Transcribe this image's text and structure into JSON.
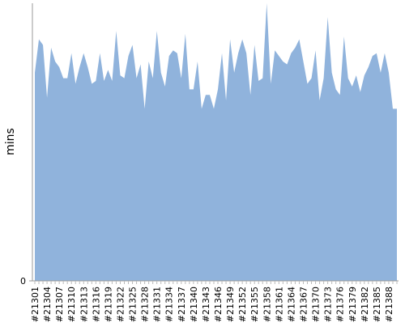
{
  "chart_data": {
    "type": "area",
    "y_label": "mins",
    "categories": [
      "#21301",
      null,
      null,
      "#21304",
      null,
      null,
      "#21307",
      null,
      null,
      "#21310",
      null,
      null,
      "#21313",
      null,
      null,
      "#21316",
      null,
      null,
      "#21319",
      null,
      null,
      "#21322",
      null,
      null,
      "#21325",
      null,
      null,
      "#21328",
      null,
      null,
      "#21331",
      null,
      null,
      "#21334",
      null,
      null,
      "#21337",
      null,
      null,
      "#21340",
      null,
      null,
      "#21343",
      null,
      null,
      "#21346",
      null,
      null,
      "#21349",
      null,
      null,
      "#21352",
      null,
      null,
      "#21355",
      null,
      null,
      "#21358",
      null,
      null,
      "#21361",
      null,
      null,
      "#21364",
      null,
      null,
      "#21367",
      null,
      null,
      "#21370",
      null,
      null,
      "#21373",
      null,
      null,
      "#21376",
      null,
      null,
      "#21379",
      null,
      null,
      "#21382",
      null,
      null,
      "#21385",
      null,
      null,
      "#21388",
      null,
      null
    ],
    "values": [
      75,
      87,
      85,
      66,
      84,
      79,
      77,
      73,
      73,
      82,
      71,
      77,
      82,
      77,
      71,
      72,
      82,
      72,
      76,
      72,
      90,
      74,
      73,
      81,
      85,
      73,
      78,
      62,
      79,
      73,
      90,
      75,
      70,
      81,
      83,
      82,
      73,
      89,
      69,
      69,
      79,
      62,
      67,
      67,
      62,
      69,
      82,
      65,
      87,
      75,
      82,
      87,
      82,
      67,
      85,
      72,
      73,
      100,
      71,
      83,
      81,
      79,
      78,
      82,
      84,
      87,
      79,
      71,
      73,
      83,
      65,
      73,
      95,
      75,
      69,
      67,
      88,
      73,
      70,
      74,
      68,
      74,
      77,
      81,
      82,
      75,
      82,
      75,
      62,
      62
    ],
    "color": "#90b3dc",
    "ylim": [
      0,
      100
    ],
    "yticks": [
      0
    ]
  }
}
